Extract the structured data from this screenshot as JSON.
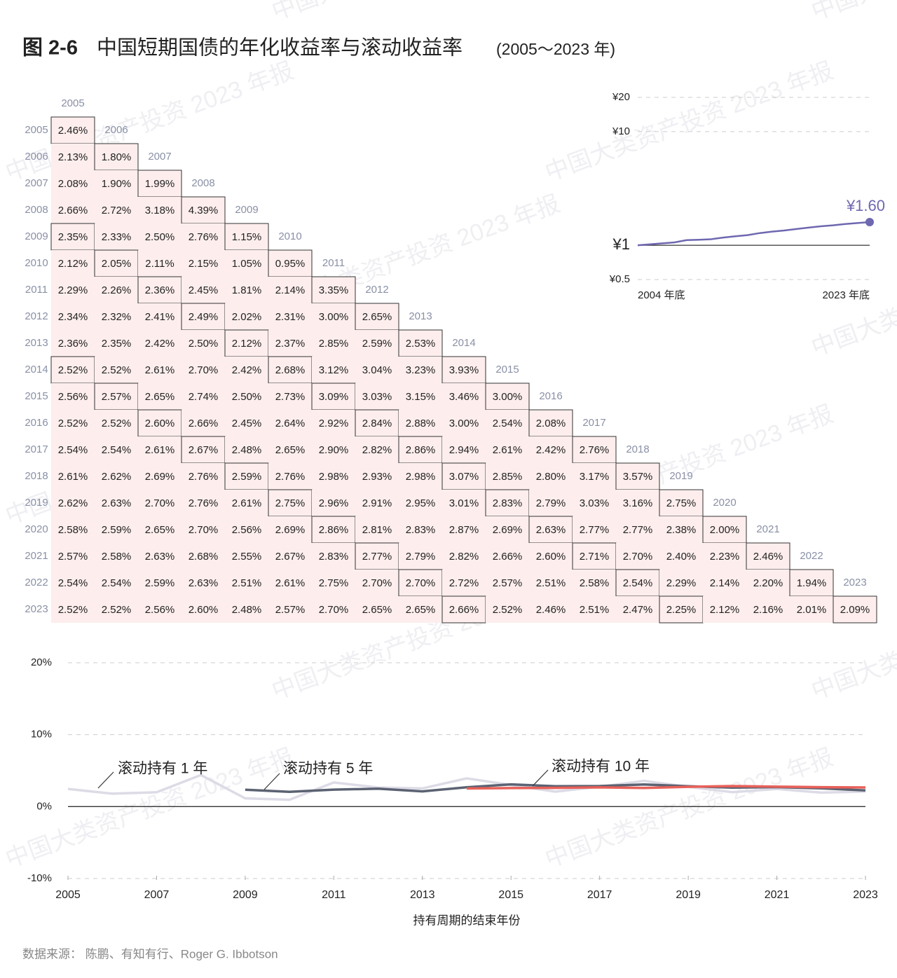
{
  "figure_number": "图 2-6",
  "title": "中国短期国债的年化收益率与滚动收益率",
  "title_note": "(2005～2023 年)",
  "source": "数据来源：  陈鹏、有知有行、Roger G. Ibbotson",
  "watermark": "中国大类资产投资 2023 年报",
  "chart_data": [
    {
      "type": "table",
      "years": [
        "2005",
        "2006",
        "2007",
        "2008",
        "2009",
        "2010",
        "2011",
        "2012",
        "2013",
        "2014",
        "2015",
        "2016",
        "2017",
        "2018",
        "2019",
        "2020",
        "2021",
        "2022",
        "2023"
      ],
      "rows": [
        [
          "2.46%"
        ],
        [
          "2.13%",
          "1.80%"
        ],
        [
          "2.08%",
          "1.90%",
          "1.99%"
        ],
        [
          "2.66%",
          "2.72%",
          "3.18%",
          "4.39%"
        ],
        [
          "2.35%",
          "2.33%",
          "2.50%",
          "2.76%",
          "1.15%"
        ],
        [
          "2.12%",
          "2.05%",
          "2.11%",
          "2.15%",
          "1.05%",
          "0.95%"
        ],
        [
          "2.29%",
          "2.26%",
          "2.36%",
          "2.45%",
          "1.81%",
          "2.14%",
          "3.35%"
        ],
        [
          "2.34%",
          "2.32%",
          "2.41%",
          "2.49%",
          "2.02%",
          "2.31%",
          "3.00%",
          "2.65%"
        ],
        [
          "2.36%",
          "2.35%",
          "2.42%",
          "2.50%",
          "2.12%",
          "2.37%",
          "2.85%",
          "2.59%",
          "2.53%"
        ],
        [
          "2.52%",
          "2.52%",
          "2.61%",
          "2.70%",
          "2.42%",
          "2.68%",
          "3.12%",
          "3.04%",
          "3.23%",
          "3.93%"
        ],
        [
          "2.56%",
          "2.57%",
          "2.65%",
          "2.74%",
          "2.50%",
          "2.73%",
          "3.09%",
          "3.03%",
          "3.15%",
          "3.46%",
          "3.00%"
        ],
        [
          "2.52%",
          "2.52%",
          "2.60%",
          "2.66%",
          "2.45%",
          "2.64%",
          "2.92%",
          "2.84%",
          "2.88%",
          "3.00%",
          "2.54%",
          "2.08%"
        ],
        [
          "2.54%",
          "2.54%",
          "2.61%",
          "2.67%",
          "2.48%",
          "2.65%",
          "2.90%",
          "2.82%",
          "2.86%",
          "2.94%",
          "2.61%",
          "2.42%",
          "2.76%"
        ],
        [
          "2.61%",
          "2.62%",
          "2.69%",
          "2.76%",
          "2.59%",
          "2.76%",
          "2.98%",
          "2.93%",
          "2.98%",
          "3.07%",
          "2.85%",
          "2.80%",
          "3.17%",
          "3.57%"
        ],
        [
          "2.62%",
          "2.63%",
          "2.70%",
          "2.76%",
          "2.61%",
          "2.75%",
          "2.96%",
          "2.91%",
          "2.95%",
          "3.01%",
          "2.83%",
          "2.79%",
          "3.03%",
          "3.16%",
          "2.75%"
        ],
        [
          "2.58%",
          "2.59%",
          "2.65%",
          "2.70%",
          "2.56%",
          "2.69%",
          "2.86%",
          "2.81%",
          "2.83%",
          "2.87%",
          "2.69%",
          "2.63%",
          "2.77%",
          "2.77%",
          "2.38%",
          "2.00%"
        ],
        [
          "2.57%",
          "2.58%",
          "2.63%",
          "2.68%",
          "2.55%",
          "2.67%",
          "2.83%",
          "2.77%",
          "2.79%",
          "2.82%",
          "2.66%",
          "2.60%",
          "2.71%",
          "2.70%",
          "2.40%",
          "2.23%",
          "2.46%"
        ],
        [
          "2.54%",
          "2.54%",
          "2.59%",
          "2.63%",
          "2.51%",
          "2.61%",
          "2.75%",
          "2.70%",
          "2.70%",
          "2.72%",
          "2.57%",
          "2.51%",
          "2.58%",
          "2.54%",
          "2.29%",
          "2.14%",
          "2.20%",
          "1.94%"
        ],
        [
          "2.52%",
          "2.52%",
          "2.56%",
          "2.60%",
          "2.48%",
          "2.57%",
          "2.70%",
          "2.65%",
          "2.65%",
          "2.66%",
          "2.52%",
          "2.46%",
          "2.51%",
          "2.47%",
          "2.25%",
          "2.12%",
          "2.16%",
          "2.01%",
          "2.09%"
        ]
      ]
    },
    {
      "type": "line",
      "log_scale": true,
      "categories": [
        "2004 年底",
        null,
        null,
        null,
        null,
        null,
        null,
        null,
        null,
        null,
        null,
        null,
        null,
        null,
        null,
        null,
        null,
        null,
        null,
        "2023 年底"
      ],
      "series": [
        {
          "color": "#6e68b0",
          "values": [
            1.0,
            1.02,
            1.04,
            1.06,
            1.11,
            1.12,
            1.13,
            1.17,
            1.2,
            1.23,
            1.28,
            1.32,
            1.35,
            1.39,
            1.43,
            1.47,
            1.5,
            1.54,
            1.57,
            1.6
          ],
          "value_labels": [
            null,
            null,
            null,
            null,
            null,
            null,
            null,
            null,
            null,
            null,
            null,
            null,
            null,
            null,
            null,
            null,
            null,
            null,
            null,
            "¥1.60"
          ]
        }
      ],
      "ylim": [
        0.5,
        20
      ],
      "yticks": [
        {
          "value": 20,
          "label": "¥20"
        },
        {
          "value": 10,
          "label": "¥10"
        },
        {
          "value": 1,
          "label": "¥1"
        },
        {
          "value": 0.5,
          "label": "¥0.5"
        }
      ],
      "grid": true
    },
    {
      "type": "line",
      "x": [
        2005,
        2006,
        2007,
        2008,
        2009,
        2010,
        2011,
        2012,
        2013,
        2014,
        2015,
        2016,
        2017,
        2018,
        2019,
        2020,
        2021,
        2022,
        2023
      ],
      "series": [
        {
          "name": "滚动持有 1 年",
          "color": "#dcdbe6",
          "values": [
            2.46,
            1.8,
            1.99,
            4.39,
            1.15,
            0.95,
            3.35,
            2.65,
            2.53,
            3.93,
            3.0,
            2.08,
            2.76,
            3.57,
            2.75,
            2.0,
            2.46,
            1.94,
            2.09
          ]
        },
        {
          "name": "滚动持有 5 年",
          "color": "#5b6272",
          "values": [
            null,
            null,
            null,
            null,
            2.35,
            2.05,
            2.36,
            2.49,
            2.12,
            2.68,
            3.09,
            2.84,
            2.86,
            3.07,
            2.83,
            2.63,
            2.71,
            2.54,
            2.25
          ]
        },
        {
          "name": "滚动持有 10 年",
          "color": "#e8615a",
          "values": [
            null,
            null,
            null,
            null,
            null,
            null,
            null,
            null,
            null,
            2.52,
            2.57,
            2.6,
            2.67,
            2.59,
            2.75,
            2.86,
            2.77,
            2.7,
            2.66
          ]
        }
      ],
      "xlim": [
        2005,
        2023
      ],
      "xticks": [
        2005,
        2007,
        2009,
        2011,
        2013,
        2015,
        2017,
        2019,
        2021,
        2023
      ],
      "ylim": [
        -10,
        20
      ],
      "yticks": [
        {
          "value": 20,
          "label": "20%"
        },
        {
          "value": 10,
          "label": "10%"
        },
        {
          "value": 0,
          "label": "0%"
        },
        {
          "value": -10,
          "label": "-10%"
        }
      ],
      "xlabel": "持有周期的结束年份",
      "grid": true
    }
  ]
}
